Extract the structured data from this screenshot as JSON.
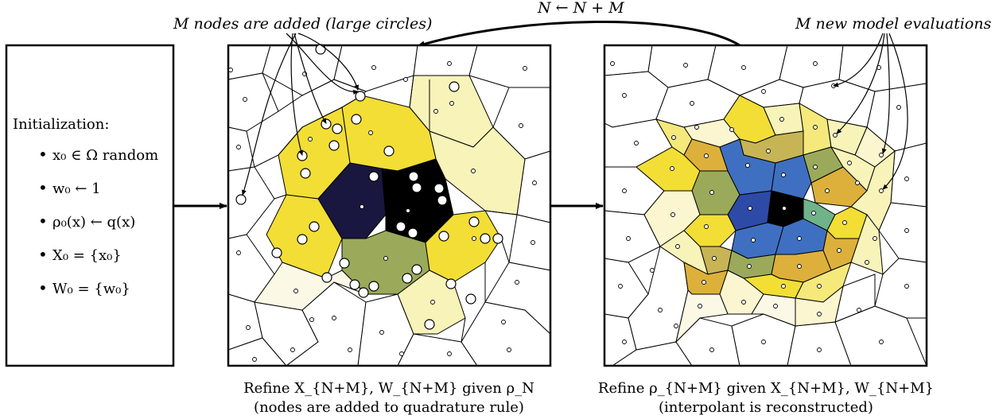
{
  "annotations": {
    "top_left": "M nodes are added (large circles)",
    "top_center": "N ← N + M",
    "top_right": "M new model evaluations"
  },
  "init_panel": {
    "title": "Initialization:",
    "items": [
      "x₀ ∈ Ω random",
      "w₀ ← 1",
      "ρ₀(x) ← q(x)",
      "X₀ = {x₀}",
      "W₀ = {w₀}"
    ],
    "bullet": "•"
  },
  "captions": {
    "middle_line1": "Refine X_{N+M}, W_{N+M} given ρ_N",
    "middle_line2": "(nodes are added to quadrature rule)",
    "right_line1": "Refine ρ_{N+M} given X_{N+M}, W_{N+M}",
    "right_line2": "(interpolant is reconstructed)"
  },
  "colors": {
    "border": "#000000",
    "yellow_bright": "#f2de35",
    "yellow_mid": "#f4e97a",
    "yellow_pale": "#f8f3b8",
    "cream": "#fbf9e6",
    "navy": "#19163f",
    "black": "#000000",
    "olive": "#9aaa5a",
    "blue": "#3f6fc0",
    "blue_dark": "#2d4aa6",
    "teal": "#6fb38a",
    "orange": "#dcb03a",
    "tan": "#c7b455"
  }
}
